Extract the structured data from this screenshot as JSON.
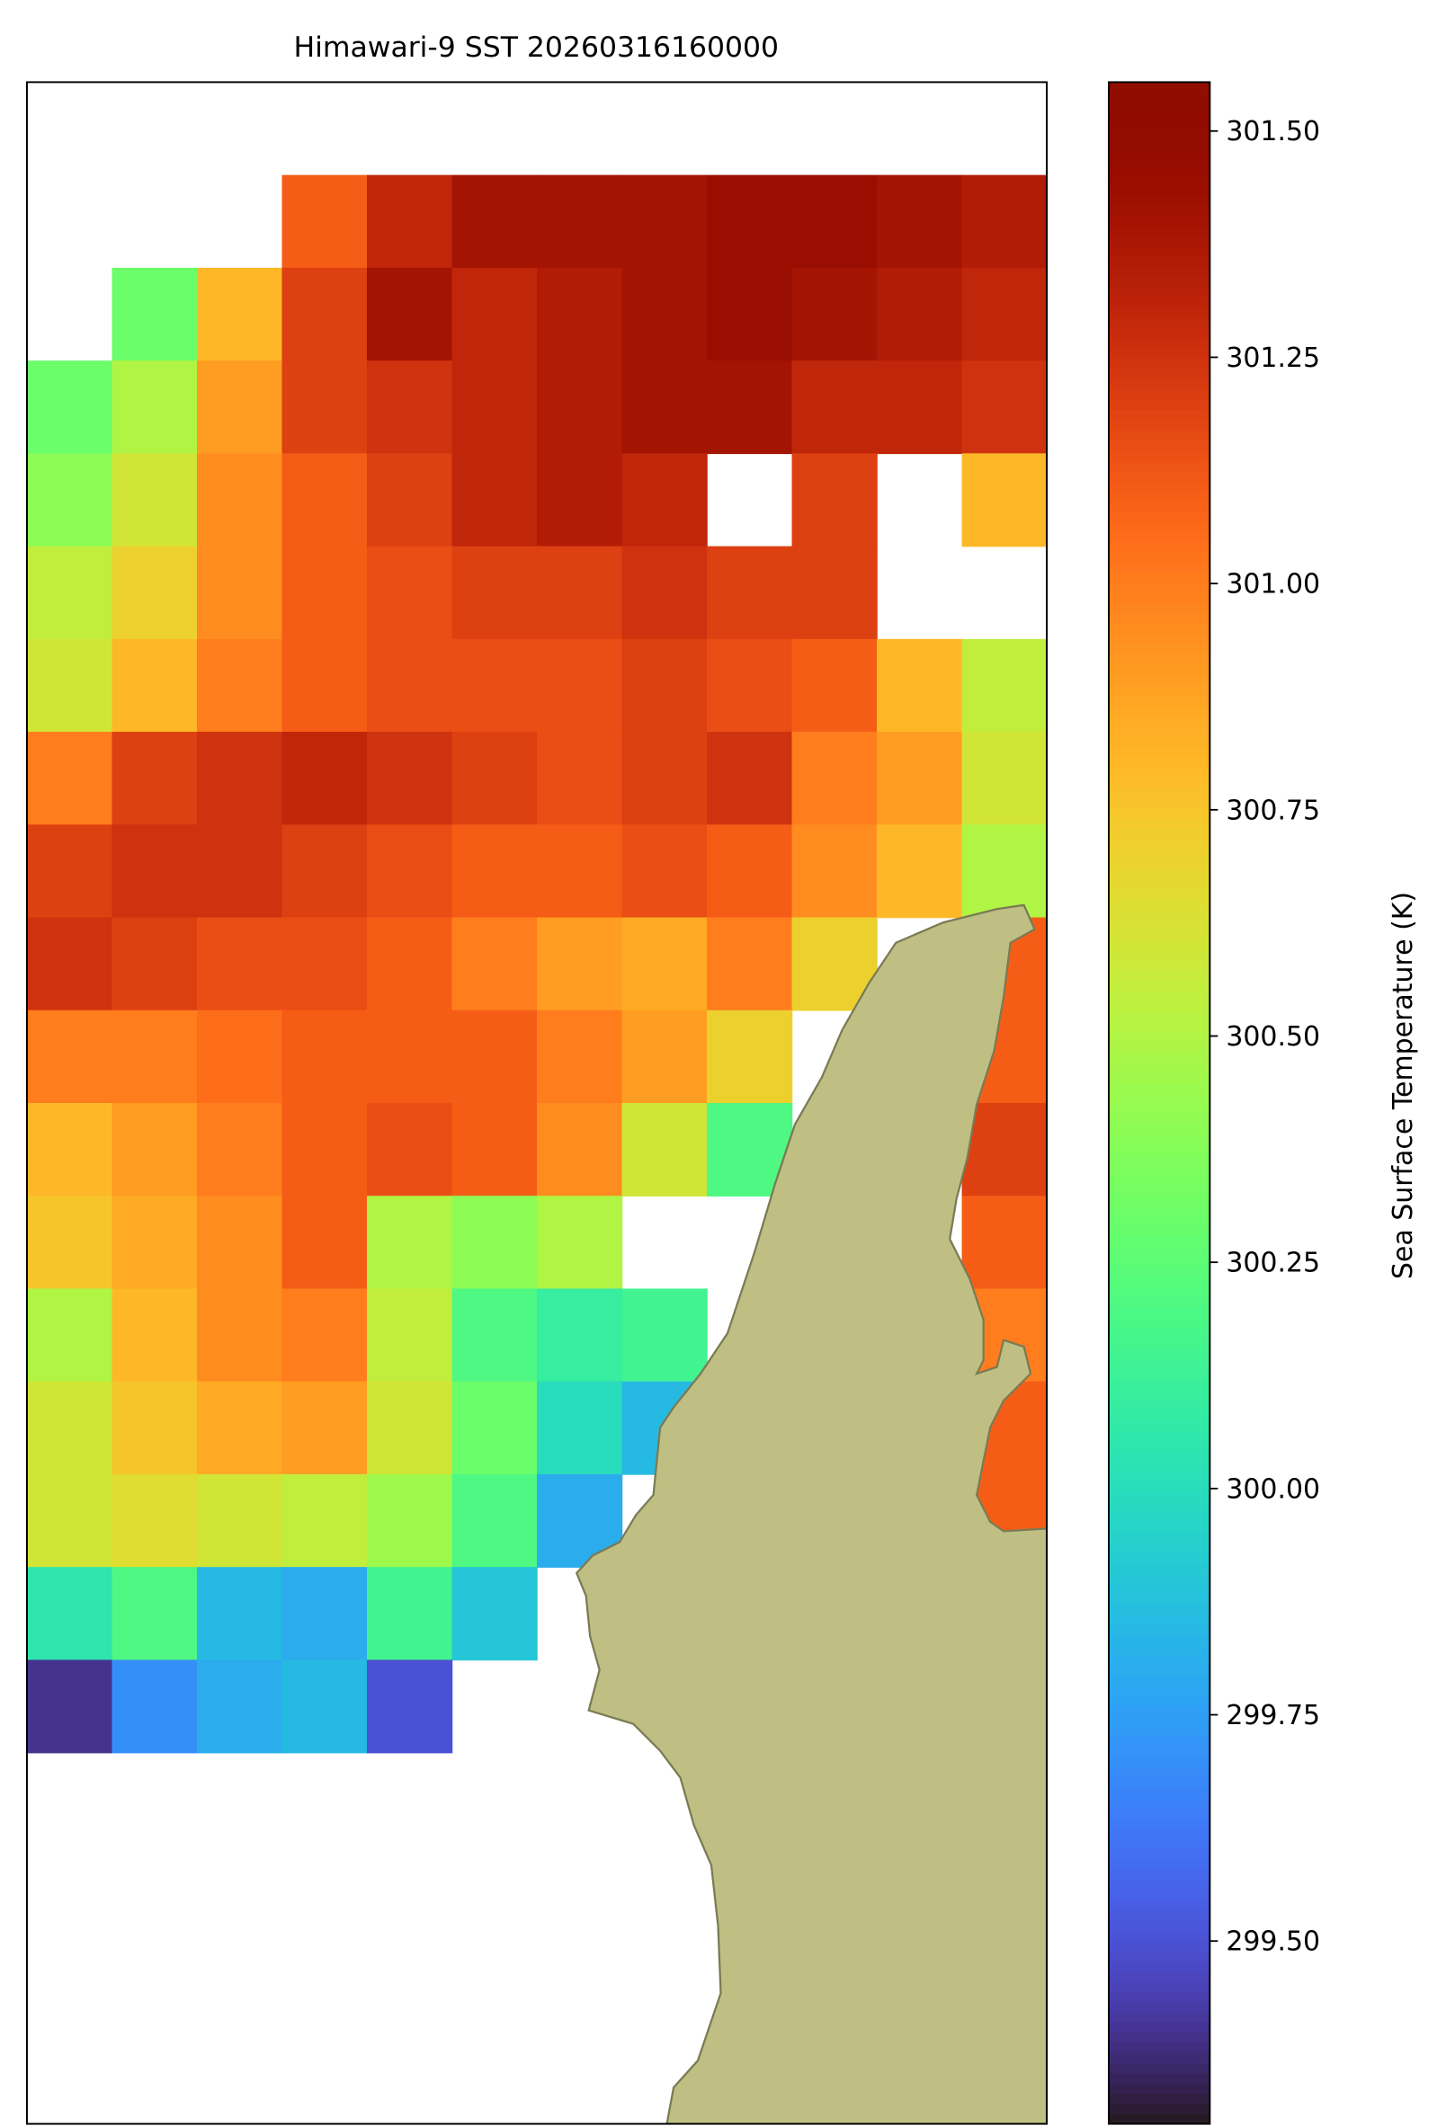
{
  "chart_data": {
    "type": "heatmap",
    "title": "Himawari-9 SST 20260316160000",
    "colorbar_label": "Sea Surface Temperature (K)",
    "cmap": "turbo",
    "land_color": "#bfbf83",
    "clim": [
      299.298,
      301.554
    ],
    "colorbar_ticks": [
      {
        "value": 299.5,
        "label": "299.50"
      },
      {
        "value": 299.75,
        "label": "299.75"
      },
      {
        "value": 300,
        "label": "300.00"
      },
      {
        "value": 300.25,
        "label": "300.25"
      },
      {
        "value": 300.5,
        "label": "300.50"
      },
      {
        "value": 300.75,
        "label": "300.75"
      },
      {
        "value": 301,
        "label": "301.00"
      },
      {
        "value": 301.25,
        "label": "301.25"
      },
      {
        "value": 301.5,
        "label": "301.50"
      }
    ],
    "z": [
      [
        null,
        null,
        null,
        null,
        null,
        null,
        null,
        null,
        null,
        null,
        null,
        null
      ],
      [
        null,
        null,
        null,
        301.1,
        301.3,
        301.4,
        301.4,
        301.4,
        301.45,
        301.45,
        301.4,
        301.35
      ],
      [
        null,
        300.3,
        300.8,
        301.2,
        301.4,
        301.3,
        301.35,
        301.4,
        301.45,
        301.4,
        301.35,
        301.3
      ],
      [
        300.3,
        300.5,
        300.9,
        301.2,
        301.25,
        301.3,
        301.35,
        301.4,
        301.4,
        301.3,
        301.3,
        301.25
      ],
      [
        300.4,
        300.6,
        300.95,
        301.1,
        301.2,
        301.3,
        301.35,
        301.3,
        null,
        301.2,
        null,
        300.8
      ],
      [
        300.55,
        300.7,
        300.95,
        301.1,
        301.15,
        301.2,
        301.2,
        301.25,
        301.2,
        301.2,
        null,
        null
      ],
      [
        300.6,
        300.8,
        301.0,
        301.1,
        301.15,
        301.15,
        301.15,
        301.2,
        301.15,
        301.1,
        300.8,
        300.55
      ],
      [
        301.0,
        301.2,
        301.25,
        301.3,
        301.25,
        301.2,
        301.15,
        301.2,
        301.25,
        301.0,
        300.9,
        300.6
      ],
      [
        301.2,
        301.25,
        301.25,
        301.2,
        301.15,
        301.1,
        301.1,
        301.15,
        301.1,
        300.95,
        300.8,
        300.5
      ],
      [
        301.25,
        301.2,
        301.15,
        301.15,
        301.1,
        301.0,
        300.9,
        300.85,
        301.0,
        300.7,
        null,
        301.1
      ],
      [
        301.0,
        301.0,
        301.05,
        301.1,
        301.1,
        301.1,
        301.0,
        300.9,
        300.7,
        null,
        null,
        301.1
      ],
      [
        300.8,
        300.9,
        301.0,
        301.1,
        301.15,
        301.1,
        300.95,
        300.6,
        300.2,
        null,
        null,
        301.2
      ],
      [
        300.75,
        300.85,
        300.95,
        301.1,
        300.5,
        300.4,
        300.5,
        null,
        null,
        null,
        null,
        301.1
      ],
      [
        300.5,
        300.8,
        300.95,
        301.0,
        300.55,
        300.2,
        300.1,
        300.15,
        null,
        null,
        null,
        301.0
      ],
      [
        300.6,
        300.75,
        300.85,
        300.9,
        300.6,
        300.3,
        300.0,
        299.85,
        null,
        null,
        null,
        301.1
      ],
      [
        300.6,
        300.65,
        300.6,
        300.55,
        300.45,
        300.2,
        299.8,
        null,
        null,
        null,
        null,
        301.1
      ],
      [
        300.05,
        300.2,
        299.85,
        299.8,
        300.15,
        299.9,
        null,
        null,
        null,
        null,
        null,
        null
      ],
      [
        299.4,
        299.7,
        299.8,
        299.85,
        299.5,
        null,
        null,
        null,
        null,
        null,
        null,
        null
      ],
      [
        null,
        null,
        null,
        null,
        null,
        null,
        null,
        null,
        null,
        null,
        null,
        null
      ],
      [
        null,
        null,
        null,
        null,
        null,
        null,
        null,
        null,
        null,
        null,
        null,
        null
      ],
      [
        null,
        null,
        null,
        null,
        null,
        null,
        null,
        null,
        null,
        null,
        null,
        null
      ],
      [
        null,
        null,
        null,
        null,
        null,
        null,
        null,
        null,
        null,
        null,
        null,
        null
      ]
    ]
  }
}
